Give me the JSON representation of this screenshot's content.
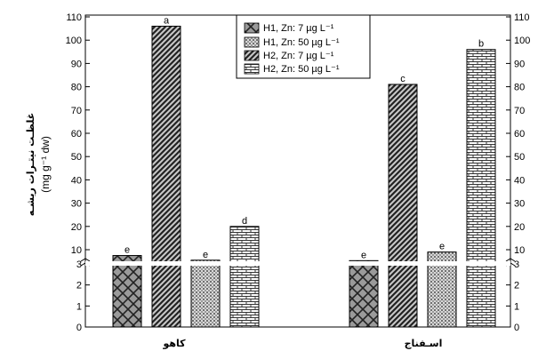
{
  "chart_data": {
    "type": "bar",
    "categories": [
      "کاهو",
      "اسـفناج"
    ],
    "ylabel": "غلظـت نیتـرات ریشـه",
    "ylabel_unit": "(mg g⁻¹ dw)",
    "y_axis_broken": true,
    "y_break_at": 3,
    "y_ticks_lower": [
      0,
      1,
      2,
      3
    ],
    "y_ticks_upper": [
      10,
      20,
      30,
      40,
      50,
      60,
      70,
      80,
      90,
      100,
      110
    ],
    "ylim": [
      0,
      110
    ],
    "legend_position": "top-center",
    "series": [
      {
        "name": "H1,  Zn: 7 µg L⁻¹",
        "values": [
          7.5,
          5.3
        ],
        "letters": [
          "e",
          "e"
        ],
        "pattern": "crosshatch"
      },
      {
        "name": "H2,  Zn: 7 µg L⁻¹",
        "values": [
          106,
          81
        ],
        "letters": [
          "a",
          "c"
        ],
        "pattern": "diagonal"
      },
      {
        "name": "H1,  Zn: 50 µg L⁻¹",
        "values": [
          5.5,
          9
        ],
        "letters": [
          "e",
          "e"
        ],
        "pattern": "dots"
      },
      {
        "name": "H2,  Zn: 50 µg L⁻¹",
        "values": [
          20,
          96
        ],
        "letters": [
          "d",
          "b"
        ],
        "pattern": "bricks"
      }
    ],
    "legend_order": [
      0,
      2,
      1,
      3
    ]
  }
}
